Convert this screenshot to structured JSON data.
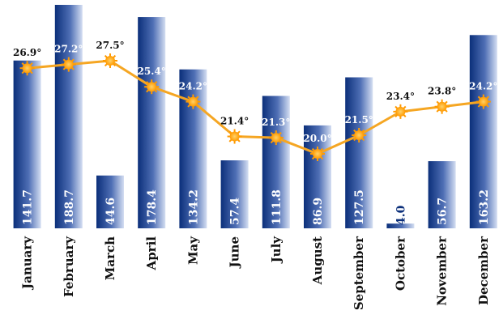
{
  "chart_data": {
    "type": "bar",
    "categories": [
      "January",
      "February",
      "March",
      "April",
      "May",
      "June",
      "July",
      "August",
      "September",
      "October",
      "November",
      "December"
    ],
    "series": [
      {
        "type": "bar",
        "values": [
          141.7,
          188.7,
          44.6,
          178.4,
          134.2,
          57.4,
          111.8,
          86.9,
          127.5,
          4.0,
          56.7,
          163.2
        ],
        "labels": [
          "141.7",
          "188.7",
          "44.6",
          "178.4",
          "134.2",
          "57.4",
          "111.8",
          "86.9",
          "127.5",
          "4.0",
          "56.7",
          "163.2"
        ]
      },
      {
        "type": "line",
        "values": [
          26.9,
          27.2,
          27.5,
          25.4,
          24.2,
          21.4,
          21.3,
          20.0,
          21.5,
          23.4,
          23.8,
          24.2
        ],
        "labels": [
          "26.9°",
          "27.2°",
          "27.5°",
          "25.4°",
          "24.2°",
          "21.4°",
          "21.3°",
          "20.0°",
          "21.5°",
          "23.4°",
          "23.8°",
          "24.2°"
        ]
      }
    ],
    "colors": {
      "bar_dark": "#0b2f7a",
      "bar_light": "#c9d6ee",
      "line": "#f5a623",
      "marker": "#ffb000",
      "temp_text_on_bar": "#ffffff",
      "temp_text": "#111111"
    },
    "grid": false,
    "legend": "none"
  }
}
